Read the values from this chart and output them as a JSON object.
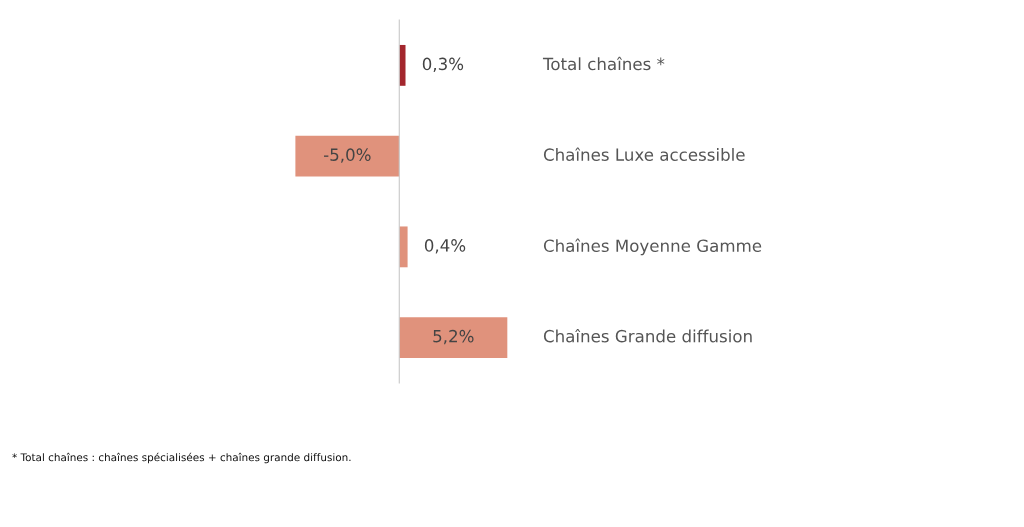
{
  "chart_data": {
    "type": "bar",
    "orientation": "horizontal",
    "categories": [
      "Total chaînes *",
      "Chaînes Luxe accessible",
      "Chaînes Moyenne Gamme",
      "Chaînes Grande diffusion"
    ],
    "values": [
      0.3,
      -5.0,
      0.4,
      5.2
    ],
    "colors": [
      "#a3262d",
      "#e0927c",
      "#e0927c",
      "#e0927c"
    ],
    "value_labels": [
      "0,3%",
      "-5,0%",
      "0,4%",
      "5,2%"
    ],
    "annotations": [
      "* Total chaînes : chaînes spécialisées + chaînes grande diffusion."
    ]
  }
}
